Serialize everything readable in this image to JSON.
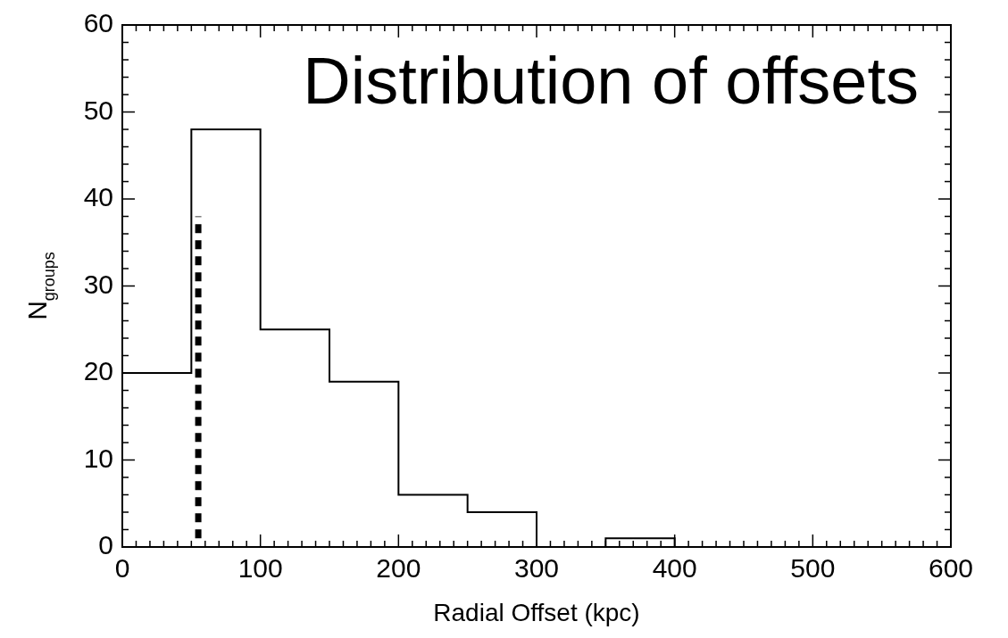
{
  "chart_data": {
    "type": "histogram",
    "title": "Distribution of offsets",
    "xlabel": "Radial Offset (kpc)",
    "ylabel": "N$_{groups}$",
    "series": [
      {
        "color": "#000000",
        "bins": [
          0,
          50,
          100,
          150,
          200,
          250,
          300,
          350,
          400,
          450,
          500,
          550,
          600
        ],
        "values": [
          20,
          48,
          25,
          19,
          6,
          4,
          0,
          1,
          0,
          0,
          0,
          0
        ]
      },
      {
        "type": "line",
        "color": "#000000",
        "line_style": "dashed",
        "x": [
          55,
          55
        ],
        "values": [
          1,
          38
        ]
      }
    ],
    "xlim": [
      0,
      600
    ],
    "ylim": [
      0,
      60
    ],
    "xticks": [
      0,
      100,
      200,
      300,
      400,
      500,
      600
    ],
    "yticks": [
      0,
      10,
      20,
      30,
      40,
      50,
      60
    ],
    "grid": false,
    "legend": false
  }
}
